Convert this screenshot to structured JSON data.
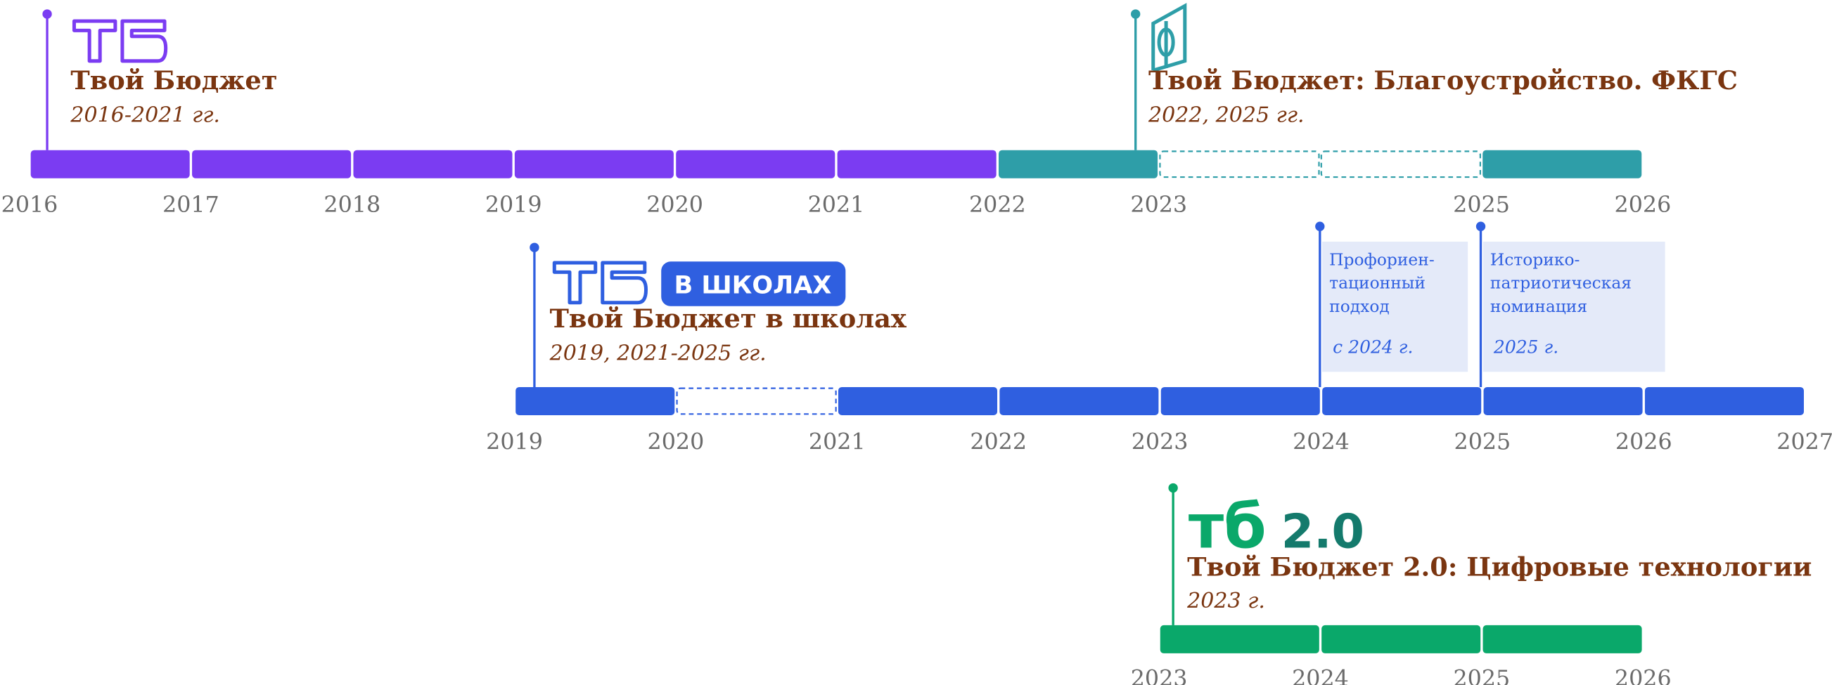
{
  "timelines": [
    {
      "title": "Твой Бюджет",
      "period": "2016-2021 гг.",
      "years": [
        2016,
        2017,
        2018,
        2019,
        2020,
        2021,
        2022,
        2023,
        2025,
        2026
      ],
      "segments": [
        {
          "color": "#7b3cf2",
          "style": "solid"
        },
        {
          "color": "#7b3cf2",
          "style": "solid"
        },
        {
          "color": "#7b3cf2",
          "style": "solid"
        },
        {
          "color": "#7b3cf2",
          "style": "solid"
        },
        {
          "color": "#7b3cf2",
          "style": "solid"
        },
        {
          "color": "#7b3cf2",
          "style": "solid"
        },
        {
          "color": "#2e9ea8",
          "style": "solid"
        },
        {
          "color": "#2e9ea8",
          "style": "dashed"
        },
        {
          "color": "#2e9ea8",
          "style": "dashed"
        },
        {
          "color": "#2e9ea8",
          "style": "solid"
        }
      ]
    },
    {
      "title": "Твой Бюджет: Благоустройство. ФКГС",
      "period": "2022, 2025 гг."
    },
    {
      "title": "Твой Бюджет в школах",
      "period": "2019, 2021-2025 гг.",
      "badge": "В ШКОЛАХ",
      "years": [
        2019,
        2020,
        2021,
        2022,
        2023,
        2024,
        2025,
        2026,
        2027
      ],
      "segments": [
        {
          "color": "#2f5fe0",
          "style": "solid"
        },
        {
          "color": "#2f5fe0",
          "style": "dashed"
        },
        {
          "color": "#2f5fe0",
          "style": "solid"
        },
        {
          "color": "#2f5fe0",
          "style": "solid"
        },
        {
          "color": "#2f5fe0",
          "style": "solid"
        },
        {
          "color": "#2f5fe0",
          "style": "solid"
        },
        {
          "color": "#2f5fe0",
          "style": "solid"
        },
        {
          "color": "#2f5fe0",
          "style": "solid"
        }
      ],
      "notes": [
        {
          "lines": [
            "Профориен-",
            "тационный",
            "подход"
          ],
          "period": "с 2024 г."
        },
        {
          "lines": [
            "Историко-",
            "патриотическая",
            "номинация"
          ],
          "period": "2025 г."
        }
      ]
    },
    {
      "title": "Твой Бюджет 2.0: Цифровые технологии",
      "period": "2023 г.",
      "logo": "тб",
      "version": "2.0",
      "years": [
        2023,
        2024,
        2025,
        2026
      ],
      "segments": [
        {
          "color": "#0aa86a",
          "style": "solid"
        },
        {
          "color": "#0aa86a",
          "style": "solid"
        },
        {
          "color": "#0aa86a",
          "style": "solid"
        }
      ]
    }
  ]
}
